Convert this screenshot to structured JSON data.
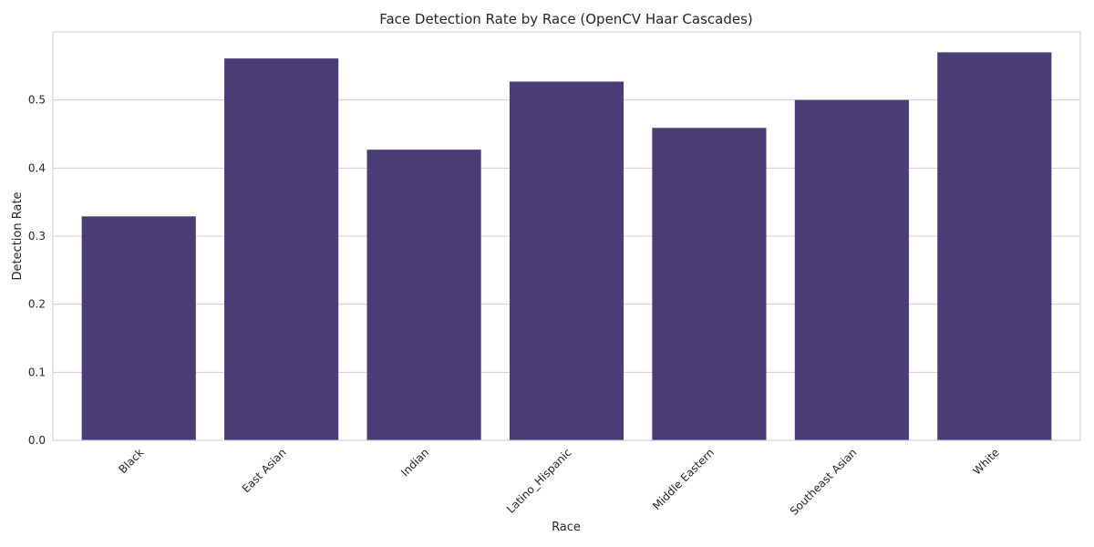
{
  "chart_data": {
    "type": "bar",
    "title": "Face Detection Rate by Race (OpenCV Haar Cascades)",
    "xlabel": "Race",
    "ylabel": "Detection Rate",
    "categories": [
      "Black",
      "East Asian",
      "Indian",
      "Latino_Hispanic",
      "Middle Eastern",
      "Southeast Asian",
      "White"
    ],
    "values": [
      0.329,
      0.561,
      0.427,
      0.527,
      0.459,
      0.5,
      0.57
    ],
    "ylim": [
      0,
      0.6
    ],
    "yticks": [
      "0.0",
      "0.1",
      "0.2",
      "0.3",
      "0.4",
      "0.5"
    ],
    "bar_color": "#4a3c74",
    "grid": true,
    "xtick_rotation": "45"
  }
}
